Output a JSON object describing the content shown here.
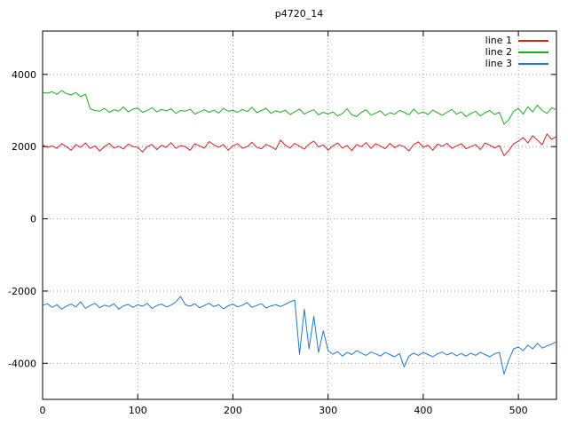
{
  "chart_data": {
    "type": "line",
    "title": "p4720_14",
    "xlabel": "",
    "ylabel": "",
    "xlim": [
      0,
      540
    ],
    "ylim": [
      -5000,
      5200
    ],
    "xticks": [
      0,
      100,
      200,
      300,
      400,
      500
    ],
    "yticks": [
      -4000,
      -2000,
      0,
      2000,
      4000
    ],
    "grid": "dotted",
    "legend_position": "top-right",
    "x_start": 0,
    "x_step": 5,
    "series": [
      {
        "name": "line 1",
        "color": "#cc2222",
        "values": [
          2050,
          1980,
          2020,
          1950,
          2080,
          2000,
          1900,
          2060,
          1980,
          2100,
          1950,
          2020,
          1880,
          2000,
          2090,
          1960,
          2010,
          1930,
          2070,
          2000,
          1980,
          1850,
          2000,
          2060,
          1920,
          2040,
          1980,
          2110,
          1950,
          2030,
          2000,
          1900,
          2080,
          2020,
          1960,
          2140,
          2050,
          1980,
          2060,
          1900,
          2020,
          2080,
          1950,
          2000,
          2120,
          1980,
          1940,
          2060,
          2000,
          1920,
          2180,
          2040,
          1960,
          2090,
          2010,
          1930,
          2070,
          2150,
          1990,
          2050,
          1900,
          2020,
          2100,
          1960,
          2030,
          1890,
          2060,
          2000,
          2110,
          1950,
          2080,
          2020,
          1940,
          2090,
          1970,
          2050,
          2000,
          1880,
          2060,
          2130,
          1980,
          2040,
          1900,
          2070,
          2010,
          2090,
          1950,
          2020,
          2080,
          1940,
          2000,
          2060,
          1920,
          2100,
          2040,
          1960,
          2030,
          1750,
          1900,
          2080,
          2150,
          2250,
          2100,
          2300,
          2180,
          2050,
          2350,
          2200,
          2280
        ]
      },
      {
        "name": "line 2",
        "color": "#22aa22",
        "values": [
          3500,
          3480,
          3520,
          3450,
          3550,
          3470,
          3430,
          3500,
          3380,
          3450,
          3050,
          3000,
          2980,
          3060,
          2950,
          3020,
          2980,
          3100,
          2960,
          3040,
          3070,
          2950,
          3000,
          3080,
          2960,
          3030,
          2990,
          3050,
          2920,
          3000,
          2980,
          3040,
          2900,
          2960,
          3020,
          2950,
          3010,
          2930,
          3060,
          2980,
          3000,
          2950,
          3030,
          2970,
          3090,
          2940,
          3000,
          3060,
          2920,
          2990,
          2950,
          3010,
          2890,
          2960,
          3040,
          2900,
          2970,
          3020,
          2880,
          2950,
          2900,
          2960,
          2850,
          2920,
          3050,
          2880,
          2830,
          2950,
          3020,
          2870,
          2930,
          2990,
          2860,
          2940,
          2900,
          3000,
          2950,
          2880,
          3040,
          2910,
          2960,
          2890,
          3010,
          2940,
          2870,
          2950,
          3030,
          2900,
          2960,
          2830,
          2920,
          2980,
          2850,
          2940,
          3000,
          2890,
          2950,
          2620,
          2750,
          2980,
          3060,
          2900,
          3100,
          2960,
          3150,
          3000,
          2920,
          3080,
          3020
        ]
      },
      {
        "name": "line 3",
        "color": "#2277cc",
        "values": [
          -2400,
          -2350,
          -2450,
          -2380,
          -2500,
          -2420,
          -2360,
          -2440,
          -2300,
          -2480,
          -2400,
          -2340,
          -2460,
          -2390,
          -2430,
          -2350,
          -2500,
          -2410,
          -2370,
          -2450,
          -2380,
          -2420,
          -2340,
          -2480,
          -2400,
          -2360,
          -2440,
          -2390,
          -2300,
          -2150,
          -2380,
          -2420,
          -2350,
          -2460,
          -2400,
          -2340,
          -2430,
          -2380,
          -2490,
          -2410,
          -2360,
          -2440,
          -2390,
          -2320,
          -2450,
          -2400,
          -2350,
          -2470,
          -2410,
          -2380,
          -2430,
          -2370,
          -2300,
          -2250,
          -3750,
          -2500,
          -3600,
          -2700,
          -3700,
          -3100,
          -3650,
          -3750,
          -3680,
          -3800,
          -3700,
          -3760,
          -3650,
          -3720,
          -3780,
          -3690,
          -3740,
          -3800,
          -3700,
          -3760,
          -3820,
          -3730,
          -4100,
          -3800,
          -3720,
          -3780,
          -3700,
          -3760,
          -3820,
          -3740,
          -3690,
          -3770,
          -3710,
          -3790,
          -3730,
          -3800,
          -3720,
          -3780,
          -3700,
          -3760,
          -3820,
          -3740,
          -3700,
          -4300,
          -3900,
          -3600,
          -3550,
          -3650,
          -3500,
          -3600,
          -3450,
          -3580,
          -3520,
          -3470,
          -3400
        ]
      }
    ]
  }
}
